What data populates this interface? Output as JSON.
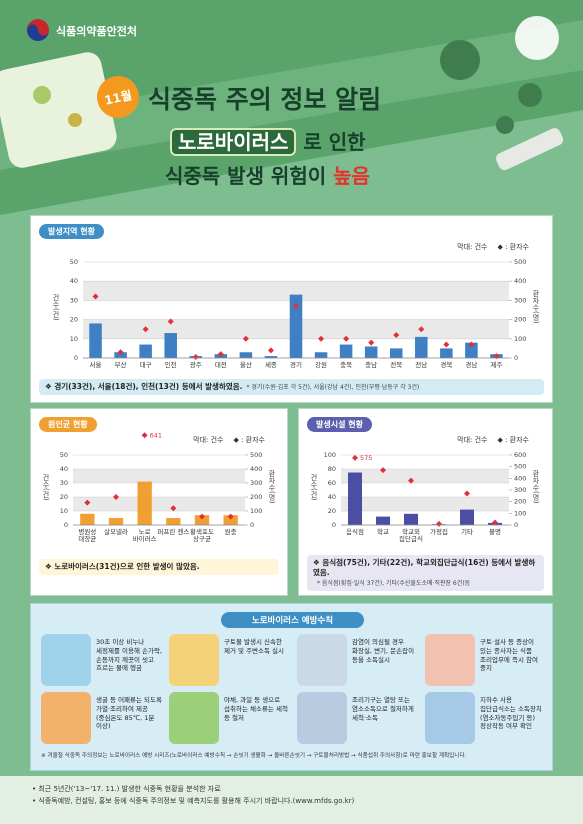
{
  "header": {
    "agency": "식품의약품안전처",
    "month": "11월",
    "title": "식중독 주의 정보 알림",
    "highlight": "노로바이러스",
    "line1_rest": "로 인한",
    "line2": "식중독 발생 위험이",
    "line2_emphasis": "높음"
  },
  "chart_data": [
    {
      "type": "bar",
      "title": "발생지역 현황",
      "ylabel": "건수(건)",
      "y2label": "환자수(명)",
      "categories": [
        "서울",
        "부산",
        "대구",
        "인천",
        "광주",
        "대전",
        "울산",
        "세종",
        "경기",
        "강원",
        "충북",
        "충남",
        "전북",
        "전남",
        "경북",
        "경남",
        "제주"
      ],
      "series": [
        {
          "name": "막대: 건수",
          "color": "#3f7fc4",
          "values": [
            18,
            3,
            7,
            13,
            1,
            2,
            3,
            1,
            33,
            3,
            7,
            6,
            5,
            11,
            5,
            8,
            2
          ]
        },
        {
          "name": "◆ : 환자수",
          "color": "#e0303a",
          "axis": "y2",
          "values": [
            320,
            30,
            150,
            190,
            5,
            20,
            100,
            40,
            270,
            100,
            100,
            80,
            120,
            150,
            70,
            70,
            10
          ]
        }
      ],
      "ylim": [
        0,
        50
      ],
      "yticks": [
        0,
        10,
        20,
        30,
        40,
        50
      ],
      "y2lim": [
        0,
        500
      ],
      "y2ticks": [
        0,
        100,
        200,
        300,
        400,
        500
      ],
      "grid": true,
      "note": "❖ 경기(33건), 서울(18건), 인천(13건) 등에서 발생하였음.",
      "footnote": "* 경기(수원·김포 각 5건), 서울(강남 4건), 인천(부평·남동구 각 3건)"
    },
    {
      "type": "bar",
      "title": "원인균 현황",
      "ylabel": "건수(건)",
      "y2label": "환자수(명)",
      "categories": [
        "병원성 대장균",
        "살모넬라",
        "노로 바이러스",
        "퍼프린 젠스",
        "황색포도 상구균",
        "원충"
      ],
      "series": [
        {
          "name": "막대: 건수",
          "color": "#f0a032",
          "values": [
            8,
            5,
            31,
            5,
            7,
            7
          ]
        },
        {
          "name": "◆ : 환자수",
          "color": "#e0303a",
          "axis": "y2",
          "values": [
            160,
            200,
            641,
            120,
            60,
            60
          ],
          "value_labels": [
            null,
            null,
            "641",
            null,
            null,
            null
          ]
        }
      ],
      "ylim": [
        0,
        50
      ],
      "yticks": [
        0,
        10,
        20,
        30,
        40,
        50
      ],
      "y2lim": [
        0,
        500
      ],
      "y2ticks": [
        0,
        100,
        200,
        300,
        400,
        500
      ],
      "grid": true,
      "note": "❖ 노로바이러스(31건)으로 인한 발생이 많았음."
    },
    {
      "type": "bar",
      "title": "발생시설 현황",
      "ylabel": "건수(건)",
      "y2label": "환자수(명)",
      "categories": [
        "음식점",
        "학교",
        "학교외 집단급식",
        "가정집",
        "기타",
        "불명"
      ],
      "series": [
        {
          "name": "막대: 건수",
          "color": "#4b4fa3",
          "values": [
            75,
            12,
            16,
            1,
            22,
            3
          ]
        },
        {
          "name": "◆ : 환자수",
          "color": "#e0303a",
          "axis": "y2",
          "values": [
            575,
            470,
            380,
            10,
            270,
            20
          ],
          "value_labels": [
            "575",
            null,
            null,
            null,
            null,
            null
          ]
        }
      ],
      "ylim": [
        0,
        100
      ],
      "yticks": [
        0,
        20,
        40,
        60,
        80,
        100
      ],
      "y2lim": [
        0,
        600
      ],
      "y2ticks": [
        0,
        100,
        200,
        300,
        400,
        500,
        600
      ],
      "grid": true,
      "note": "❖ 음식점(75건), 기타(22건), 학교외집단급식(16건) 등에서 발생하였음.",
      "footnote": "* 음식점(횟집·일식 37건), 기타(수산물도소매·직판장 6건)등"
    }
  ],
  "prevention": {
    "title": "노로바이러스 예방수칙",
    "items": [
      "30초 이상 비누나 세정제를 이용해 손가락, 손등까지 깨끗이 씻고 흐르는 물에 헹굼",
      "구토물 발생시 신속한 제거 및 주변소독 실시",
      "감염이 의심될 경우 화장실, 변기, 문손잡이 등을 소독실시",
      "구토·설사 등 증상이 있는 종사자는 식품 조리업무에 즉시 참여 중지",
      "생굴 등 어패류는 되도록 가열·조리하여 제공(중심온도 85℃, 1분 이상)",
      "야채, 과일 등 생으로 섭취하는 채소류는 세척 등 철저",
      "조리기구는 열탕 또는 염소소독으로 철저하게 세척·소독",
      "지하수 사용 집단급식소는 소독장치 (염소자동주입기 등) 정상작동 여부 확인"
    ],
    "footnote": "※ 겨울철 식중독 주의정보는 노로바이러스 예방 시리즈(노로바이러스 예방수칙 → 손씻기 생활화 → 올바른손씻기 → 구토물처리방법 → 식품섭취 주의사항)로 마련 홍보할 계획입니다."
  },
  "footer": {
    "notes": [
      "• 최근 5년간('13~'17. 11.) 발생한 식중독 현황을 분석한 자료",
      "• 식중독예방, 컨설팅, 홍보 등에 식중독 주의정보 및 예측지도를 활용해 주시기 바랍니다.(www.mfds.go.kr)"
    ]
  }
}
